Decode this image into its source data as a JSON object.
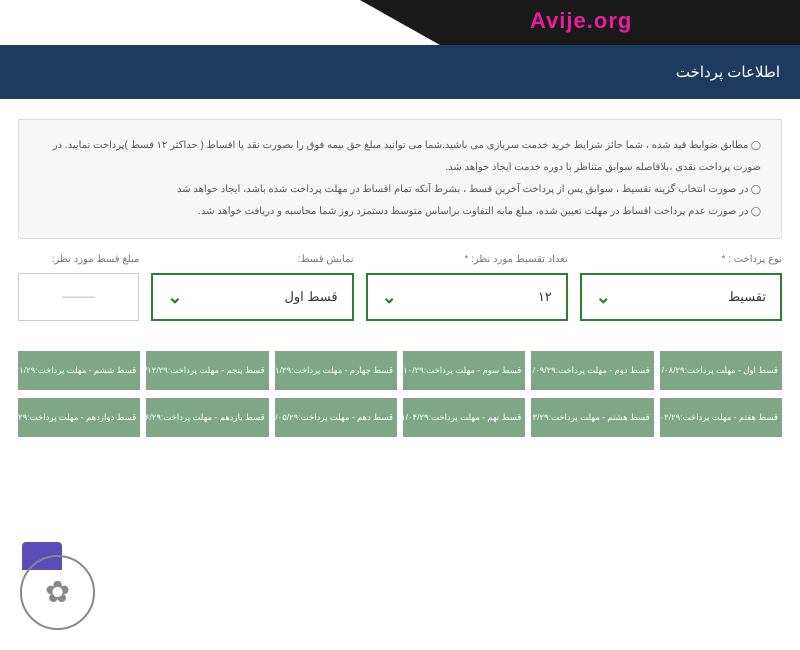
{
  "brand": "Avije.org",
  "header": {
    "title": "اطلاعات پرداخت"
  },
  "info": {
    "lines": [
      "مطابق ضوابط قید شده ، شما حائز شرایط خرید خدمت سربازی می باشید.شما می توانید مبلغ حق بیمه فوق را بصورت نقد یا اقساط ( حداکثر ۱۲ قسط )پرداخت نمایید. در صورت پرداخت نقدی ،بلافاصله سوابق متناظر با دوره خدمت ایجاد خواهد شد.",
      "در صورت انتخاب گزینه تقسیط ، سوابق پس از پرداخت آخرین قسط ، بشرط آنکه تمام اقساط در مهلت پرداخت شده باشد، ایجاد خواهد شد",
      "در صورت عدم پرداخت اقساط در مهلت تعیین شده، مبلغ مابه التفاوت براساس متوسط دستمزد روز شما محاسبه و دریافت خواهد شد."
    ]
  },
  "form": {
    "payment_type": {
      "label": "نوع پرداخت : *",
      "value": "تقسیط"
    },
    "installment_count": {
      "label": "تعداد تقسیط مورد نظر: *",
      "value": "۱۲"
    },
    "installment_display": {
      "label": "نمایش قسط:",
      "value": "قسط اول"
    },
    "amount": {
      "label": "مبلغ قسط مورد نظر:",
      "value": "———"
    }
  },
  "installments": {
    "row1": [
      "قسط اول - مهلت پرداخت:۱۴۰۰/۰۸/۲۹",
      "قسط دوم - مهلت پرداخت:۱۴۰۰/۰۹/۲۹",
      "قسط سوم - مهلت پرداخت:۱۴۰۰/۱۰/۲۹",
      "قسط چهارم - مهلت پرداخت:۱۴۰۰/۱۱/۲۹",
      "قسط پنجم - مهلت پرداخت:۱۴۰۰/۱۲/۲۹",
      "قسط ششم - مهلت پرداخت:۱۴۰۱/۰۱/۲۹"
    ],
    "row2": [
      "قسط هفتم - مهلت پرداخت:۱۴۰۱/۰۲/۲۹",
      "قسط هشتم - مهلت پرداخت:۱۴۰۱/۰۳/۲۹",
      "قسط نهم - مهلت پرداخت:۱۴۰۱/۰۴/۲۹",
      "قسط دهم - مهلت پرداخت:۱۴۰۱/۰۵/۲۹",
      "قسط یازدهم - مهلت پرداخت:۱۴۰۱/۰۶/۲۹",
      "قسط دوازدهم - مهلت پرداخت:۱۴۰۱/۰۷/۲۹"
    ]
  },
  "colors": {
    "header_bg": "#1e3a5f",
    "select_border": "#2e7d32",
    "chip_bg": "#7fa785",
    "brand_color": "#e91e9e"
  }
}
